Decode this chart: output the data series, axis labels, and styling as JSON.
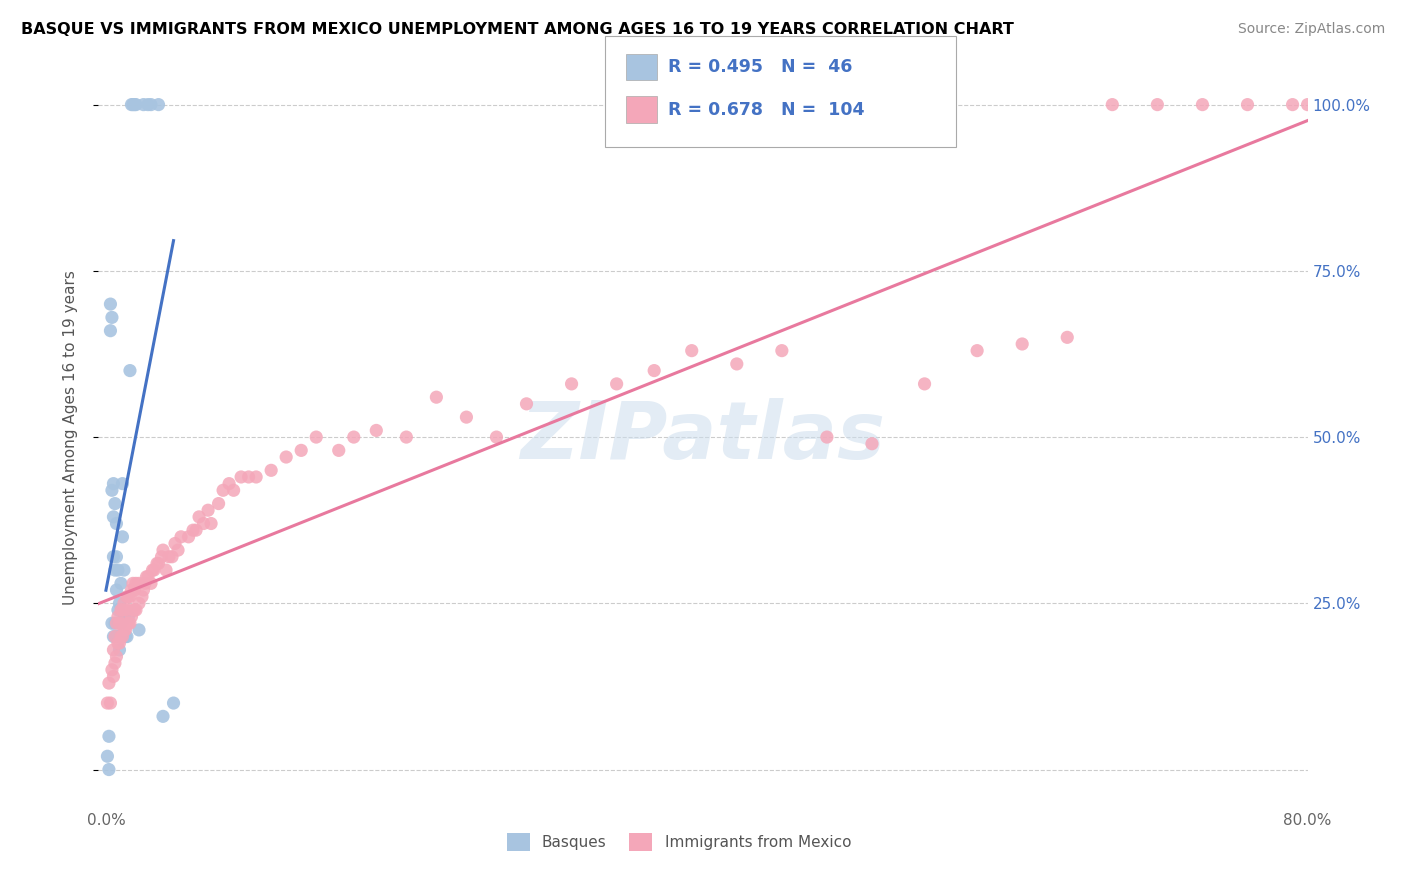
{
  "title": "BASQUE VS IMMIGRANTS FROM MEXICO UNEMPLOYMENT AMONG AGES 16 TO 19 YEARS CORRELATION CHART",
  "source": "Source: ZipAtlas.com",
  "ylabel": "Unemployment Among Ages 16 to 19 years",
  "xlim": [
    -0.005,
    0.8
  ],
  "ylim": [
    -0.05,
    1.05
  ],
  "ytick_positions": [
    0.0,
    0.25,
    0.5,
    0.75,
    1.0
  ],
  "yticklabels_right": [
    "",
    "25.0%",
    "50.0%",
    "75.0%",
    "100.0%"
  ],
  "legend_r_basque": "0.495",
  "legend_n_basque": "46",
  "legend_r_mexico": "0.678",
  "legend_n_mexico": "104",
  "basque_color": "#a8c4e0",
  "mexico_color": "#f4a7b9",
  "basque_line_color": "#4472c4",
  "mexico_line_color": "#e8799e",
  "legend_text_color": "#4472c4",
  "watermark_color": "#ccdded",
  "basque_x": [
    0.001,
    0.002,
    0.002,
    0.003,
    0.003,
    0.004,
    0.004,
    0.004,
    0.005,
    0.005,
    0.005,
    0.005,
    0.006,
    0.006,
    0.006,
    0.007,
    0.007,
    0.007,
    0.007,
    0.008,
    0.008,
    0.008,
    0.009,
    0.009,
    0.009,
    0.01,
    0.01,
    0.011,
    0.011,
    0.012,
    0.012,
    0.013,
    0.014,
    0.015,
    0.016,
    0.017,
    0.018,
    0.019,
    0.02,
    0.022,
    0.025,
    0.028,
    0.03,
    0.035,
    0.038,
    0.045
  ],
  "basque_y": [
    0.02,
    0.0,
    0.05,
    0.66,
    0.7,
    0.22,
    0.42,
    0.68,
    0.2,
    0.32,
    0.38,
    0.43,
    0.22,
    0.3,
    0.4,
    0.2,
    0.27,
    0.32,
    0.37,
    0.2,
    0.24,
    0.3,
    0.18,
    0.2,
    0.25,
    0.22,
    0.28,
    0.35,
    0.43,
    0.23,
    0.3,
    0.2,
    0.2,
    0.23,
    0.6,
    1.0,
    1.0,
    1.0,
    1.0,
    0.21,
    1.0,
    1.0,
    1.0,
    1.0,
    0.08,
    0.1
  ],
  "mexico_x": [
    0.001,
    0.002,
    0.003,
    0.004,
    0.005,
    0.005,
    0.006,
    0.006,
    0.007,
    0.007,
    0.008,
    0.008,
    0.009,
    0.009,
    0.01,
    0.01,
    0.011,
    0.011,
    0.012,
    0.012,
    0.013,
    0.013,
    0.014,
    0.014,
    0.015,
    0.015,
    0.016,
    0.016,
    0.017,
    0.017,
    0.018,
    0.018,
    0.019,
    0.019,
    0.02,
    0.02,
    0.022,
    0.022,
    0.024,
    0.025,
    0.026,
    0.027,
    0.028,
    0.03,
    0.031,
    0.032,
    0.034,
    0.035,
    0.037,
    0.038,
    0.04,
    0.042,
    0.044,
    0.046,
    0.048,
    0.05,
    0.055,
    0.058,
    0.06,
    0.062,
    0.065,
    0.068,
    0.07,
    0.075,
    0.078,
    0.082,
    0.085,
    0.09,
    0.095,
    0.1,
    0.11,
    0.12,
    0.13,
    0.14,
    0.155,
    0.165,
    0.18,
    0.2,
    0.22,
    0.24,
    0.26,
    0.28,
    0.31,
    0.34,
    0.365,
    0.39,
    0.42,
    0.45,
    0.48,
    0.51,
    0.545,
    0.58,
    0.61,
    0.64,
    0.67,
    0.7,
    0.73,
    0.76,
    0.79,
    0.8,
    0.81,
    0.82,
    0.83,
    0.84
  ],
  "mexico_y": [
    0.1,
    0.13,
    0.1,
    0.15,
    0.14,
    0.18,
    0.16,
    0.2,
    0.17,
    0.22,
    0.19,
    0.23,
    0.19,
    0.22,
    0.2,
    0.24,
    0.2,
    0.24,
    0.21,
    0.25,
    0.21,
    0.24,
    0.22,
    0.26,
    0.22,
    0.26,
    0.22,
    0.26,
    0.23,
    0.27,
    0.24,
    0.28,
    0.24,
    0.27,
    0.24,
    0.28,
    0.25,
    0.28,
    0.26,
    0.27,
    0.28,
    0.29,
    0.29,
    0.28,
    0.3,
    0.3,
    0.31,
    0.31,
    0.32,
    0.33,
    0.3,
    0.32,
    0.32,
    0.34,
    0.33,
    0.35,
    0.35,
    0.36,
    0.36,
    0.38,
    0.37,
    0.39,
    0.37,
    0.4,
    0.42,
    0.43,
    0.42,
    0.44,
    0.44,
    0.44,
    0.45,
    0.47,
    0.48,
    0.5,
    0.48,
    0.5,
    0.51,
    0.5,
    0.56,
    0.53,
    0.5,
    0.55,
    0.58,
    0.58,
    0.6,
    0.63,
    0.61,
    0.63,
    0.5,
    0.49,
    0.58,
    0.63,
    0.64,
    0.65,
    1.0,
    1.0,
    1.0,
    1.0,
    1.0,
    1.0,
    1.0,
    1.0,
    1.0,
    1.0
  ]
}
